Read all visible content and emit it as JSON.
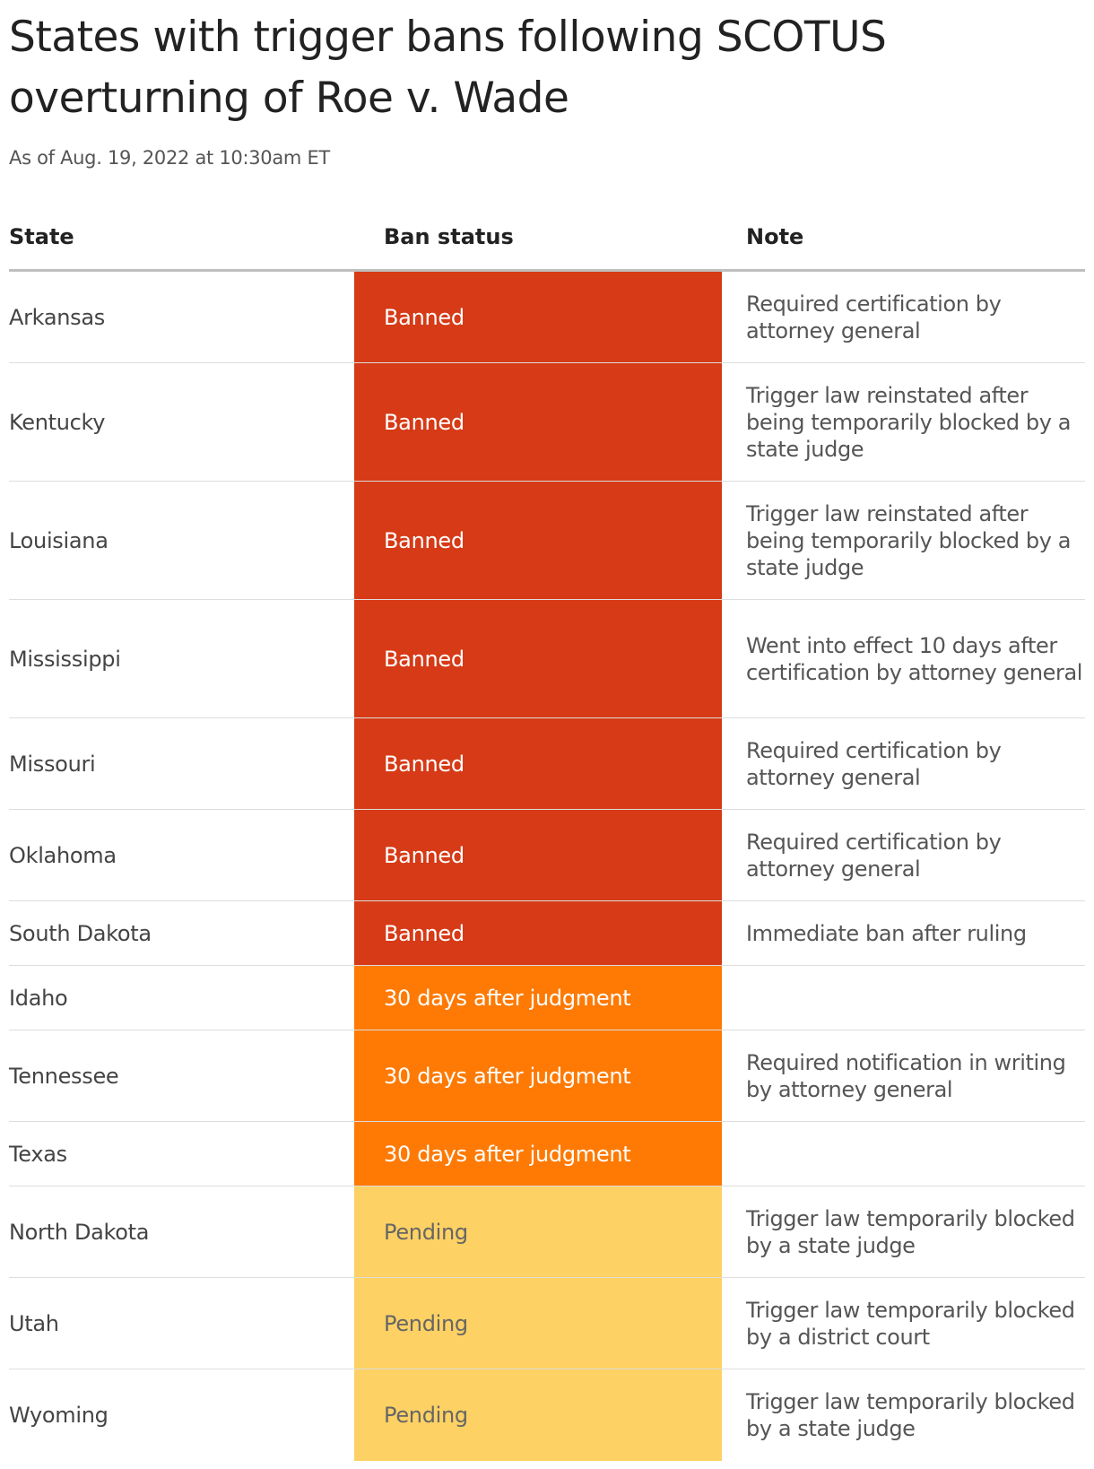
{
  "header": {
    "title": "States with trigger bans following SCOTUS overturning of Roe v. Wade",
    "subtitle": "As of Aug. 19, 2022 at 10:30am ET"
  },
  "chart_data": {
    "type": "table",
    "columns": [
      "State",
      "Ban status",
      "Note"
    ],
    "status_colors": {
      "Banned": "#d63a16",
      "30 days after judgment": "#fe7a04",
      "Pending": "#fdd163"
    },
    "rows": [
      {
        "state": "Arkansas",
        "status": "Banned",
        "note": "Required certification by attorney general"
      },
      {
        "state": "Kentucky",
        "status": "Banned",
        "note": "Trigger law reinstated after being temporarily blocked by a state judge"
      },
      {
        "state": "Louisiana",
        "status": "Banned",
        "note": "Trigger law reinstated after being temporarily blocked by a state judge"
      },
      {
        "state": "Mississippi",
        "status": "Banned",
        "note": "Went into effect 10 days after certification by attorney general"
      },
      {
        "state": "Missouri",
        "status": "Banned",
        "note": "Required certification by attorney general"
      },
      {
        "state": "Oklahoma",
        "status": "Banned",
        "note": "Required certification by attorney general"
      },
      {
        "state": "South Dakota",
        "status": "Banned",
        "note": "Immediate ban after ruling"
      },
      {
        "state": "Idaho",
        "status": "30 days after judgment",
        "note": ""
      },
      {
        "state": "Tennessee",
        "status": "30 days after judgment",
        "note": "Required notification in writing by attorney general"
      },
      {
        "state": "Texas",
        "status": "30 days after judgment",
        "note": ""
      },
      {
        "state": "North Dakota",
        "status": "Pending",
        "note": "Trigger law temporarily blocked by a state judge"
      },
      {
        "state": "Utah",
        "status": "Pending",
        "note": "Trigger law temporarily blocked by a district court"
      },
      {
        "state": "Wyoming",
        "status": "Pending",
        "note": "Trigger law temporarily blocked by a state judge"
      }
    ]
  }
}
